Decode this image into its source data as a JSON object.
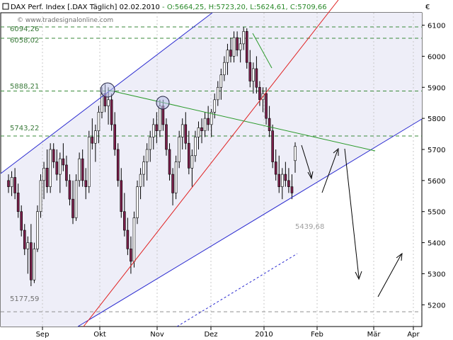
{
  "header": {
    "instrument": "DAX Perf. Index [.DAX",
    "interval": "Täglich]",
    "date": "02.02.2010",
    "open": "O:5664,25",
    "high": "H:5723,20",
    "low": "L:5624,61",
    "close": "C:5709,66"
  },
  "currency_symbol": "€",
  "watermark": "© www.tradesignalonline.com",
  "colors": {
    "up_candle": "#ffffff",
    "down_candle": "#7a1f4a",
    "candle_outline": "#000000",
    "level_line": "#3a8a3a",
    "channel_line": "#2a2ad0",
    "trend_line_red": "#e02020",
    "trend_line_green": "#2a9a2a",
    "channel_fill": "#eeeef8",
    "header_green": "#2a8a2a"
  },
  "chart_data": {
    "type": "candlestick",
    "xlabels": [
      "Sep",
      "Okt",
      "Nov",
      "Dez",
      "2010",
      "Feb",
      "Mär",
      "Apr"
    ],
    "yticks": [
      5200,
      5300,
      5400,
      5500,
      5600,
      5700,
      5800,
      5900,
      6000,
      6100
    ],
    "ylim": [
      5130,
      6140
    ],
    "levels": [
      {
        "value": 6094.26,
        "label": "6094,26"
      },
      {
        "value": 6058.02,
        "label": "6058,02"
      },
      {
        "value": 5888.21,
        "label": "5888,21"
      },
      {
        "value": 5743.22,
        "label": "5743,22"
      },
      {
        "value": 5177.59,
        "label": "5177,59"
      }
    ],
    "projection_label": {
      "value": 5439.68,
      "label": "5439,68"
    },
    "candles": [
      [
        5600,
        5620,
        5560,
        5580
      ],
      [
        5580,
        5630,
        5550,
        5610
      ],
      [
        5610,
        5640,
        5540,
        5560
      ],
      [
        5560,
        5590,
        5480,
        5500
      ],
      [
        5500,
        5520,
        5420,
        5440
      ],
      [
        5440,
        5460,
        5360,
        5380
      ],
      [
        5380,
        5420,
        5300,
        5400
      ],
      [
        5400,
        5460,
        5260,
        5280
      ],
      [
        5280,
        5400,
        5270,
        5380
      ],
      [
        5380,
        5520,
        5370,
        5500
      ],
      [
        5500,
        5620,
        5480,
        5600
      ],
      [
        5600,
        5660,
        5540,
        5640
      ],
      [
        5640,
        5700,
        5560,
        5580
      ],
      [
        5580,
        5720,
        5560,
        5700
      ],
      [
        5700,
        5720,
        5640,
        5660
      ],
      [
        5660,
        5700,
        5600,
        5620
      ],
      [
        5620,
        5690,
        5560,
        5670
      ],
      [
        5670,
        5720,
        5630,
        5650
      ],
      [
        5650,
        5680,
        5580,
        5600
      ],
      [
        5600,
        5620,
        5520,
        5540
      ],
      [
        5540,
        5600,
        5460,
        5480
      ],
      [
        5480,
        5620,
        5470,
        5600
      ],
      [
        5600,
        5690,
        5580,
        5670
      ],
      [
        5670,
        5700,
        5580,
        5600
      ],
      [
        5600,
        5640,
        5540,
        5580
      ],
      [
        5580,
        5760,
        5560,
        5740
      ],
      [
        5740,
        5800,
        5700,
        5720
      ],
      [
        5720,
        5780,
        5660,
        5760
      ],
      [
        5760,
        5840,
        5720,
        5820
      ],
      [
        5820,
        5900,
        5800,
        5880
      ],
      [
        5880,
        5910,
        5820,
        5840
      ],
      [
        5840,
        5900,
        5780,
        5860
      ],
      [
        5860,
        5880,
        5760,
        5780
      ],
      [
        5780,
        5820,
        5680,
        5700
      ],
      [
        5700,
        5720,
        5580,
        5600
      ],
      [
        5600,
        5640,
        5480,
        5500
      ],
      [
        5500,
        5560,
        5420,
        5440
      ],
      [
        5440,
        5480,
        5360,
        5380
      ],
      [
        5380,
        5420,
        5300,
        5340
      ],
      [
        5340,
        5500,
        5320,
        5480
      ],
      [
        5480,
        5600,
        5460,
        5580
      ],
      [
        5580,
        5640,
        5540,
        5620
      ],
      [
        5620,
        5680,
        5580,
        5660
      ],
      [
        5660,
        5720,
        5600,
        5700
      ],
      [
        5700,
        5760,
        5660,
        5740
      ],
      [
        5740,
        5800,
        5700,
        5780
      ],
      [
        5780,
        5820,
        5720,
        5760
      ],
      [
        5760,
        5860,
        5740,
        5840
      ],
      [
        5840,
        5860,
        5760,
        5780
      ],
      [
        5780,
        5800,
        5680,
        5700
      ],
      [
        5700,
        5720,
        5600,
        5620
      ],
      [
        5620,
        5640,
        5520,
        5560
      ],
      [
        5560,
        5680,
        5540,
        5660
      ],
      [
        5660,
        5760,
        5640,
        5740
      ],
      [
        5740,
        5800,
        5700,
        5780
      ],
      [
        5780,
        5820,
        5700,
        5720
      ],
      [
        5720,
        5760,
        5620,
        5640
      ],
      [
        5640,
        5700,
        5580,
        5680
      ],
      [
        5680,
        5760,
        5660,
        5740
      ],
      [
        5740,
        5790,
        5700,
        5770
      ],
      [
        5770,
        5800,
        5720,
        5760
      ],
      [
        5760,
        5820,
        5740,
        5800
      ],
      [
        5800,
        5840,
        5760,
        5780
      ],
      [
        5780,
        5830,
        5740,
        5820
      ],
      [
        5820,
        5880,
        5800,
        5860
      ],
      [
        5860,
        5920,
        5840,
        5900
      ],
      [
        5900,
        5960,
        5860,
        5940
      ],
      [
        5940,
        6000,
        5920,
        5980
      ],
      [
        5980,
        6040,
        5940,
        6020
      ],
      [
        6020,
        6060,
        5980,
        6000
      ],
      [
        6000,
        6080,
        5980,
        6060
      ],
      [
        6060,
        6080,
        6000,
        6020
      ],
      [
        6020,
        6060,
        5980,
        6040
      ],
      [
        6040,
        6094,
        6020,
        6080
      ],
      [
        6080,
        6090,
        5960,
        5980
      ],
      [
        5980,
        6020,
        5900,
        5920
      ],
      [
        5920,
        5980,
        5880,
        5960
      ],
      [
        5960,
        6000,
        5880,
        5900
      ],
      [
        5900,
        5920,
        5840,
        5860
      ],
      [
        5860,
        5900,
        5820,
        5880
      ],
      [
        5880,
        5900,
        5780,
        5800
      ],
      [
        5800,
        5840,
        5740,
        5760
      ],
      [
        5760,
        5780,
        5640,
        5660
      ],
      [
        5660,
        5700,
        5600,
        5620
      ],
      [
        5620,
        5680,
        5560,
        5580
      ],
      [
        5580,
        5640,
        5540,
        5620
      ],
      [
        5620,
        5660,
        5580,
        5600
      ],
      [
        5600,
        5640,
        5560,
        5580
      ],
      [
        5580,
        5620,
        5540,
        5560
      ],
      [
        5664,
        5723,
        5625,
        5710
      ]
    ],
    "lines": [
      {
        "name": "channel_upper",
        "from": [
          0,
          5600
        ],
        "to": [
          1000,
          7200
        ]
      },
      {
        "name": "channel_lower",
        "from": [
          0,
          4700
        ],
        "to": [
          1000,
          5830
        ]
      }
    ]
  }
}
